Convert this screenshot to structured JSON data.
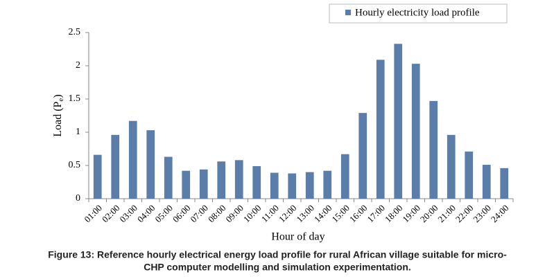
{
  "chart_data": {
    "type": "bar",
    "caption": [
      "Figure 13: Reference hourly electrical energy load profile for rural African village suitable for micro-",
      "CHP computer modelling and simulation experimentation."
    ],
    "x_label": "Hour of day",
    "y_label": {
      "text": "Load  (P",
      "subscript": "e",
      "suffix": ")"
    },
    "categories": [
      "01:00",
      "02:00",
      "03:00",
      "04:00",
      "05:00",
      "06:00",
      "07:00",
      "08:00",
      "09:00",
      "10:00",
      "11:00",
      "12:00",
      "13:00",
      "14:00",
      "15:00",
      "16:00",
      "17:00",
      "18:00",
      "19:00",
      "20:00",
      "21:00",
      "22:00",
      "23:00",
      "24:00"
    ],
    "series": [
      {
        "name": "Hourly electricity load profile",
        "color": "#5a7daa",
        "values": [
          0.66,
          0.96,
          1.17,
          1.03,
          0.63,
          0.42,
          0.44,
          0.56,
          0.58,
          0.49,
          0.39,
          0.38,
          0.4,
          0.42,
          0.67,
          1.29,
          2.09,
          2.33,
          2.03,
          1.47,
          0.96,
          0.71,
          0.51,
          0.46
        ]
      }
    ],
    "ylim": [
      0,
      2.5
    ],
    "yticks": [
      0,
      0.5,
      1,
      1.5,
      2,
      2.5
    ],
    "grid": false,
    "legend": "top-right"
  }
}
